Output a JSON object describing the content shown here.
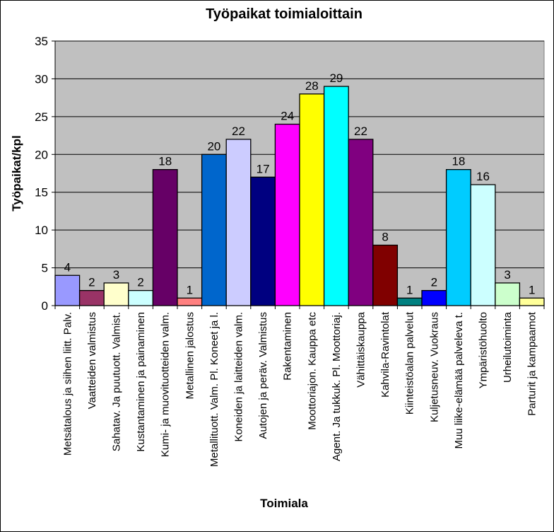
{
  "chart_data": {
    "type": "bar",
    "title": "Työpaikat toimialoittain",
    "xlabel": "Toimiala",
    "ylabel": "Työpaikat/kpl",
    "ylim": [
      0,
      35
    ],
    "yticks": [
      0,
      5,
      10,
      15,
      20,
      25,
      30,
      35
    ],
    "grid": true,
    "legend": "none",
    "plot_background": "#c0c0c0",
    "categories": [
      "Metsätalous ja siihen liitt. Palv.",
      "Vaatteiden valmistus",
      "Sahatav. Ja puutuott. Valmist.",
      "Kustantaminen ja painaminen",
      "Kumi- ja muovituotteiden valm.",
      "Metallinen jalostus",
      "Metallituott. Valm. Pl. Koneet ja l.",
      "Koneiden ja laitteiden valm.",
      "Autojen ja peräv. Valmistus",
      "Rakentaminen",
      "Moottoriajon. Kauppa etc",
      "Agent. Ja tukkuk. Pl. Moottoriaj.",
      "Vähittäiskauppa",
      "Kahvila-Ravintolat",
      "Kiinteistöalan palvelut",
      "Kuljetusneuv. Vuokraus",
      "Muu liike-elämää palveleva t.",
      "Ympäristöhuolto",
      "Urheilutoiminta",
      "Parturit ja kampaamot"
    ],
    "values": [
      4,
      2,
      3,
      2,
      18,
      1,
      20,
      22,
      17,
      24,
      28,
      29,
      22,
      8,
      1,
      2,
      18,
      16,
      3,
      1
    ],
    "colors": [
      "#9999ff",
      "#993366",
      "#ffffcc",
      "#ccffff",
      "#660066",
      "#ff8080",
      "#0066cc",
      "#ccccff",
      "#000080",
      "#ff00ff",
      "#ffff00",
      "#00ffff",
      "#800080",
      "#800000",
      "#008080",
      "#0000ff",
      "#00ccff",
      "#ccffff",
      "#ccffcc",
      "#ffff99"
    ]
  }
}
